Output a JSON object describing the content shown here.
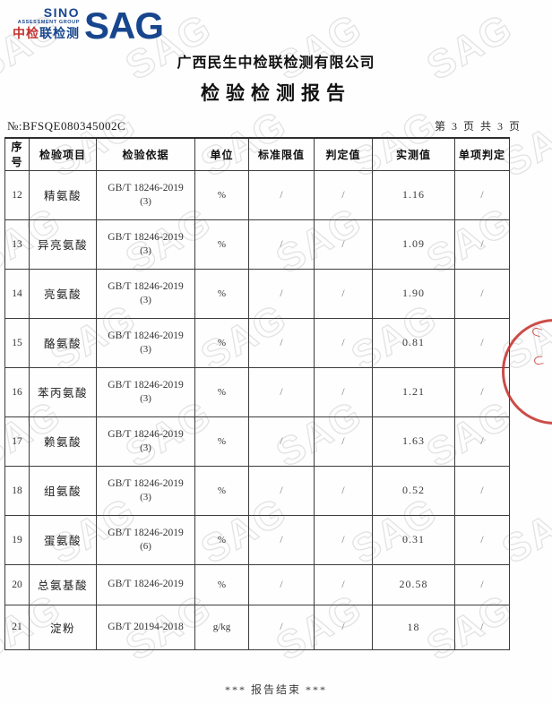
{
  "logo": {
    "sino": "SINO",
    "assessment_group": "ASSESSMENT GROUP",
    "cn_red": "中检",
    "cn_blue": "联检测",
    "sag": "SAG",
    "brand_blue": "#17468e",
    "brand_red": "#c23230"
  },
  "header": {
    "company": "广西民生中检联检测有限公司",
    "report_title": "检验检测报告",
    "report_no_label": "№:",
    "report_no": "BFSQE080345002C",
    "page_info": "第 3 页 共 3 页"
  },
  "table": {
    "headers": [
      "序号",
      "检验项目",
      "检验依据",
      "单位",
      "标准限值",
      "判定值",
      "实测值",
      "单项判定"
    ],
    "rows": [
      {
        "no": "12",
        "item": "精氨酸",
        "basis": "GB/T 18246-2019",
        "basis_note": "(3)",
        "unit": "%",
        "limit": "/",
        "judge": "/",
        "result": "1.16",
        "item_judge": "/"
      },
      {
        "no": "13",
        "item": "异亮氨酸",
        "basis": "GB/T 18246-2019",
        "basis_note": "(3)",
        "unit": "%",
        "limit": "/",
        "judge": "/",
        "result": "1.09",
        "item_judge": "/"
      },
      {
        "no": "14",
        "item": "亮氨酸",
        "basis": "GB/T 18246-2019",
        "basis_note": "(3)",
        "unit": "%",
        "limit": "/",
        "judge": "/",
        "result": "1.90",
        "item_judge": "/"
      },
      {
        "no": "15",
        "item": "酪氨酸",
        "basis": "GB/T 18246-2019",
        "basis_note": "(3)",
        "unit": "%",
        "limit": "/",
        "judge": "/",
        "result": "0.81",
        "item_judge": "/"
      },
      {
        "no": "16",
        "item": "苯丙氨酸",
        "basis": "GB/T 18246-2019",
        "basis_note": "(3)",
        "unit": "%",
        "limit": "/",
        "judge": "/",
        "result": "1.21",
        "item_judge": "/"
      },
      {
        "no": "17",
        "item": "赖氨酸",
        "basis": "GB/T 18246-2019",
        "basis_note": "(3)",
        "unit": "%",
        "limit": "/",
        "judge": "/",
        "result": "1.63",
        "item_judge": "/"
      },
      {
        "no": "18",
        "item": "组氨酸",
        "basis": "GB/T 18246-2019",
        "basis_note": "(3)",
        "unit": "%",
        "limit": "/",
        "judge": "/",
        "result": "0.52",
        "item_judge": "/"
      },
      {
        "no": "19",
        "item": "蛋氨酸",
        "basis": "GB/T 18246-2019",
        "basis_note": "(6)",
        "unit": "%",
        "limit": "/",
        "judge": "/",
        "result": "0.31",
        "item_judge": "/"
      },
      {
        "no": "20",
        "item": "总氨基酸",
        "basis": "GB/T 18246-2019",
        "basis_note": "",
        "unit": "%",
        "limit": "/",
        "judge": "/",
        "result": "20.58",
        "item_judge": "/"
      },
      {
        "no": "21",
        "item": "淀粉",
        "basis": "GB/T 20194-2018",
        "basis_note": "",
        "unit": "g/kg",
        "limit": "/",
        "judge": "/",
        "result": "18",
        "item_judge": "/"
      }
    ]
  },
  "footer": {
    "end_text": "*** 报告结束 ***"
  },
  "watermark": {
    "text": "SAG"
  }
}
